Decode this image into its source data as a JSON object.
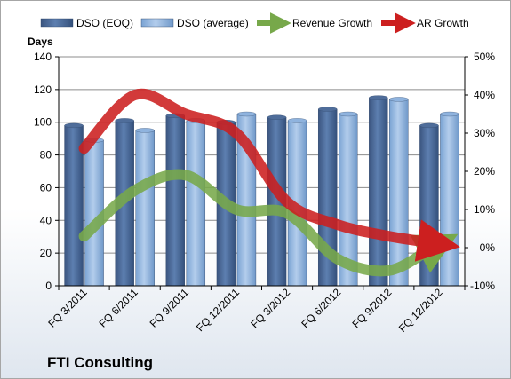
{
  "chart_data": {
    "type": "bar",
    "title": "FTI Consulting",
    "ylabel": "Days",
    "ylim": [
      0,
      140
    ],
    "yticks": [
      0,
      20,
      40,
      60,
      80,
      100,
      120,
      140
    ],
    "y2lim": [
      -10,
      50
    ],
    "y2ticks": [
      "-10%",
      "0%",
      "10%",
      "20%",
      "30%",
      "40%",
      "50%"
    ],
    "y2values": [
      -10,
      0,
      10,
      20,
      30,
      40,
      50
    ],
    "categories": [
      "FQ 3/2011",
      "FQ 6/2011",
      "FQ 9/2011",
      "FQ 12/2011",
      "FQ 3/2012",
      "FQ 6/2012",
      "FQ 9/2012",
      "FQ 12/2012"
    ],
    "grid": true,
    "legend_position": "top",
    "series": [
      {
        "name": "DSO (EOQ)",
        "kind": "bar",
        "axis": "left",
        "color": "#4f6d9a",
        "values": [
          98,
          101,
          104,
          100,
          103,
          108,
          115,
          98
        ]
      },
      {
        "name": "DSO (average)",
        "kind": "bar",
        "axis": "left",
        "color": "#8fb3de",
        "values": [
          89,
          95,
          101,
          105,
          101,
          105,
          114,
          105
        ]
      },
      {
        "name": "Revenue Growth",
        "kind": "line",
        "axis": "right",
        "color": "#77a84a",
        "values": [
          3,
          15,
          19,
          10,
          9,
          -3,
          -6,
          1
        ]
      },
      {
        "name": "AR Growth",
        "kind": "line",
        "axis": "right",
        "color": "#cc1f1f",
        "values": [
          26,
          40,
          35,
          30,
          12,
          6,
          3,
          1
        ]
      }
    ]
  }
}
